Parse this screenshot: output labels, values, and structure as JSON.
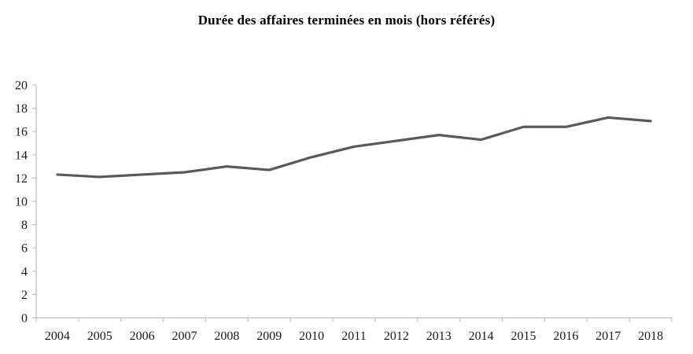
{
  "chart_data": {
    "type": "line",
    "title": "Durée des affaires terminées en mois (hors référés)",
    "categories": [
      "2004",
      "2005",
      "2006",
      "2007",
      "2008",
      "2009",
      "2010",
      "2011",
      "2012",
      "2013",
      "2014",
      "2015",
      "2016",
      "2017",
      "2018"
    ],
    "series": [
      {
        "name": "Durée des affaires terminées en mois (hors référés)",
        "values": [
          12.3,
          12.1,
          12.3,
          12.5,
          13.0,
          12.7,
          13.8,
          14.7,
          15.2,
          15.7,
          15.3,
          16.4,
          16.4,
          17.2,
          16.9
        ]
      }
    ],
    "xlabel": "",
    "ylabel": "",
    "ylim": [
      0,
      20
    ],
    "ytick_step": 2,
    "grid": false,
    "legend_position": "none",
    "line_color": "#595959",
    "axis_color": "#bfbfbf",
    "text_color": "#1a1a1a"
  }
}
